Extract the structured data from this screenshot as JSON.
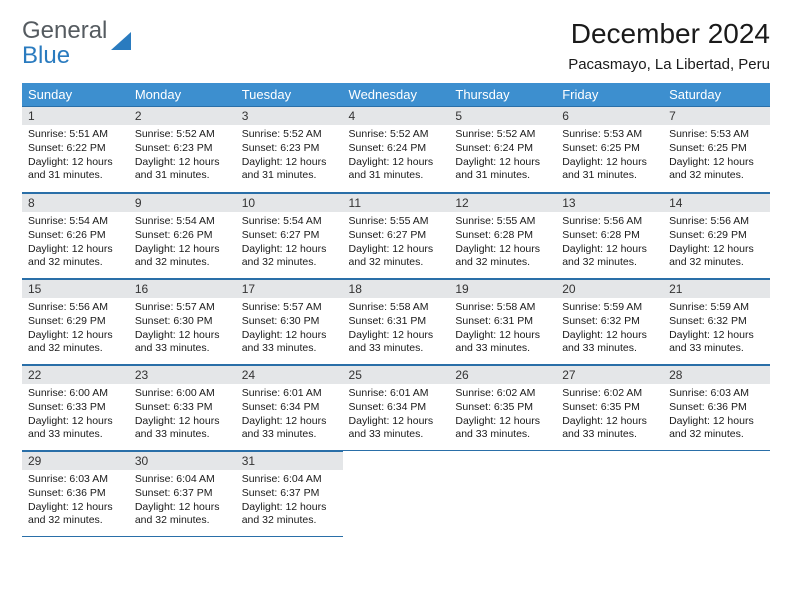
{
  "brand": {
    "line1": "General",
    "line2": "Blue"
  },
  "title": "December 2024",
  "location": "Pacasmayo, La Libertad, Peru",
  "colors": {
    "header_bg": "#3d8fcf",
    "header_text": "#ffffff",
    "daybar_bg": "#e4e6e8",
    "rule": "#2a6fa8",
    "body_text": "#1a1a1a",
    "logo_gray": "#555b60",
    "logo_blue": "#2a7bbf",
    "page_bg": "#ffffff"
  },
  "columns": [
    "Sunday",
    "Monday",
    "Tuesday",
    "Wednesday",
    "Thursday",
    "Friday",
    "Saturday"
  ],
  "weeks": [
    [
      {
        "n": "1",
        "sr": "5:51 AM",
        "ss": "6:22 PM",
        "dl": "12 hours and 31 minutes."
      },
      {
        "n": "2",
        "sr": "5:52 AM",
        "ss": "6:23 PM",
        "dl": "12 hours and 31 minutes."
      },
      {
        "n": "3",
        "sr": "5:52 AM",
        "ss": "6:23 PM",
        "dl": "12 hours and 31 minutes."
      },
      {
        "n": "4",
        "sr": "5:52 AM",
        "ss": "6:24 PM",
        "dl": "12 hours and 31 minutes."
      },
      {
        "n": "5",
        "sr": "5:52 AM",
        "ss": "6:24 PM",
        "dl": "12 hours and 31 minutes."
      },
      {
        "n": "6",
        "sr": "5:53 AM",
        "ss": "6:25 PM",
        "dl": "12 hours and 31 minutes."
      },
      {
        "n": "7",
        "sr": "5:53 AM",
        "ss": "6:25 PM",
        "dl": "12 hours and 32 minutes."
      }
    ],
    [
      {
        "n": "8",
        "sr": "5:54 AM",
        "ss": "6:26 PM",
        "dl": "12 hours and 32 minutes."
      },
      {
        "n": "9",
        "sr": "5:54 AM",
        "ss": "6:26 PM",
        "dl": "12 hours and 32 minutes."
      },
      {
        "n": "10",
        "sr": "5:54 AM",
        "ss": "6:27 PM",
        "dl": "12 hours and 32 minutes."
      },
      {
        "n": "11",
        "sr": "5:55 AM",
        "ss": "6:27 PM",
        "dl": "12 hours and 32 minutes."
      },
      {
        "n": "12",
        "sr": "5:55 AM",
        "ss": "6:28 PM",
        "dl": "12 hours and 32 minutes."
      },
      {
        "n": "13",
        "sr": "5:56 AM",
        "ss": "6:28 PM",
        "dl": "12 hours and 32 minutes."
      },
      {
        "n": "14",
        "sr": "5:56 AM",
        "ss": "6:29 PM",
        "dl": "12 hours and 32 minutes."
      }
    ],
    [
      {
        "n": "15",
        "sr": "5:56 AM",
        "ss": "6:29 PM",
        "dl": "12 hours and 32 minutes."
      },
      {
        "n": "16",
        "sr": "5:57 AM",
        "ss": "6:30 PM",
        "dl": "12 hours and 33 minutes."
      },
      {
        "n": "17",
        "sr": "5:57 AM",
        "ss": "6:30 PM",
        "dl": "12 hours and 33 minutes."
      },
      {
        "n": "18",
        "sr": "5:58 AM",
        "ss": "6:31 PM",
        "dl": "12 hours and 33 minutes."
      },
      {
        "n": "19",
        "sr": "5:58 AM",
        "ss": "6:31 PM",
        "dl": "12 hours and 33 minutes."
      },
      {
        "n": "20",
        "sr": "5:59 AM",
        "ss": "6:32 PM",
        "dl": "12 hours and 33 minutes."
      },
      {
        "n": "21",
        "sr": "5:59 AM",
        "ss": "6:32 PM",
        "dl": "12 hours and 33 minutes."
      }
    ],
    [
      {
        "n": "22",
        "sr": "6:00 AM",
        "ss": "6:33 PM",
        "dl": "12 hours and 33 minutes."
      },
      {
        "n": "23",
        "sr": "6:00 AM",
        "ss": "6:33 PM",
        "dl": "12 hours and 33 minutes."
      },
      {
        "n": "24",
        "sr": "6:01 AM",
        "ss": "6:34 PM",
        "dl": "12 hours and 33 minutes."
      },
      {
        "n": "25",
        "sr": "6:01 AM",
        "ss": "6:34 PM",
        "dl": "12 hours and 33 minutes."
      },
      {
        "n": "26",
        "sr": "6:02 AM",
        "ss": "6:35 PM",
        "dl": "12 hours and 33 minutes."
      },
      {
        "n": "27",
        "sr": "6:02 AM",
        "ss": "6:35 PM",
        "dl": "12 hours and 33 minutes."
      },
      {
        "n": "28",
        "sr": "6:03 AM",
        "ss": "6:36 PM",
        "dl": "12 hours and 32 minutes."
      }
    ],
    [
      {
        "n": "29",
        "sr": "6:03 AM",
        "ss": "6:36 PM",
        "dl": "12 hours and 32 minutes."
      },
      {
        "n": "30",
        "sr": "6:04 AM",
        "ss": "6:37 PM",
        "dl": "12 hours and 32 minutes."
      },
      {
        "n": "31",
        "sr": "6:04 AM",
        "ss": "6:37 PM",
        "dl": "12 hours and 32 minutes."
      },
      null,
      null,
      null,
      null
    ]
  ],
  "labels": {
    "sunrise": "Sunrise:",
    "sunset": "Sunset:",
    "daylight": "Daylight:"
  }
}
